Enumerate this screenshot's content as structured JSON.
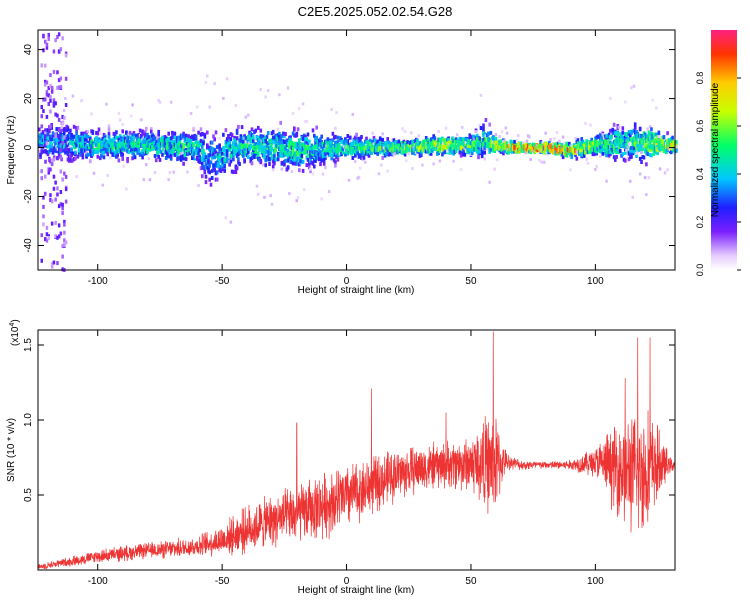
{
  "title": "C2E5.2025.052.02.54.G28",
  "chart_data": [
    {
      "type": "heatmap",
      "xlabel": "Height of straight line (km)",
      "ylabel": "Frequency (Hz)",
      "xlim": [
        -124,
        132
      ],
      "ylim": [
        -50,
        48
      ],
      "x_ticks": [
        -100,
        -50,
        0,
        50,
        100
      ],
      "y_ticks": [
        -40,
        -20,
        0,
        20,
        40
      ],
      "x_tick_labels": [
        "-100",
        "-50",
        "0",
        "50",
        "100"
      ],
      "y_tick_labels": [
        "-40",
        "-20",
        "0",
        "20",
        "40"
      ],
      "colorbar": {
        "label": "Normalized spectral amplitude",
        "range": [
          0,
          1
        ],
        "ticks": [
          0.0,
          0.2,
          0.4,
          0.6,
          0.8
        ],
        "tick_labels": [
          "0.0",
          "0.2",
          "0.4",
          "0.6",
          "0.8"
        ]
      },
      "ridge": {
        "description_points_x": [
          -115,
          -100,
          -80,
          -60,
          -56,
          -40,
          -20,
          0,
          20,
          40,
          50,
          55,
          60,
          70,
          80,
          90,
          100,
          110,
          120,
          130
        ],
        "center_hz": [
          2,
          1,
          1,
          0,
          -5,
          1,
          -1,
          0,
          0,
          1,
          1,
          3,
          1,
          0,
          0,
          -1,
          1,
          2,
          2,
          1
        ],
        "spread_hz": [
          8,
          6,
          6,
          7,
          12,
          8,
          9,
          5,
          3,
          4,
          4,
          8,
          3,
          2,
          2,
          3,
          4,
          8,
          8,
          3
        ],
        "peak_amplitude": [
          0.4,
          0.5,
          0.5,
          0.5,
          0.4,
          0.5,
          0.5,
          0.5,
          0.6,
          0.7,
          0.6,
          0.5,
          0.7,
          0.9,
          0.9,
          0.8,
          0.6,
          0.5,
          0.6,
          0.8
        ]
      }
    },
    {
      "type": "line",
      "xlabel": "Height of straight line (km)",
      "ylabel": "SNR (10 * v/v)",
      "scale_label": "(x10",
      "scale_exp": "4",
      "scale_close": ")",
      "xlim": [
        -124,
        132
      ],
      "ylim": [
        0,
        1.6
      ],
      "x_ticks": [
        -100,
        -50,
        0,
        50,
        100
      ],
      "y_ticks": [
        0.5,
        1.0,
        1.5
      ],
      "x_tick_labels": [
        "-100",
        "-50",
        "0",
        "50",
        "100"
      ],
      "y_tick_labels": [
        "0.5",
        "1.0",
        "1.5"
      ],
      "series": [
        {
          "color": "#ee3333",
          "envelope_x": [
            -124,
            -110,
            -100,
            -90,
            -80,
            -70,
            -60,
            -50,
            -40,
            -30,
            -20,
            -10,
            0,
            10,
            20,
            30,
            40,
            50,
            55,
            60,
            63,
            66,
            70,
            80,
            90,
            100,
            105,
            110,
            115,
            120,
            125,
            130,
            132
          ],
          "envelope_mean": [
            0.02,
            0.06,
            0.09,
            0.11,
            0.13,
            0.14,
            0.16,
            0.2,
            0.27,
            0.33,
            0.37,
            0.43,
            0.49,
            0.56,
            0.64,
            0.68,
            0.7,
            0.71,
            0.71,
            0.7,
            0.72,
            0.72,
            0.7,
            0.7,
            0.7,
            0.72,
            0.7,
            0.68,
            0.64,
            0.66,
            0.7,
            0.7,
            0.7
          ],
          "envelope_amp": [
            0.02,
            0.04,
            0.05,
            0.06,
            0.06,
            0.07,
            0.08,
            0.12,
            0.18,
            0.2,
            0.22,
            0.25,
            0.25,
            0.22,
            0.2,
            0.18,
            0.18,
            0.22,
            0.35,
            0.4,
            0.12,
            0.05,
            0.04,
            0.03,
            0.04,
            0.12,
            0.25,
            0.4,
            0.45,
            0.5,
            0.3,
            0.06,
            0.05
          ],
          "peaks": [
            [
              -20,
              0.98
            ],
            [
              10,
              1.21
            ],
            [
              40,
              1.05
            ],
            [
              59,
              1.59
            ],
            [
              112,
              1.28
            ],
            [
              117,
              1.55
            ],
            [
              122,
              1.55
            ]
          ]
        }
      ]
    }
  ]
}
